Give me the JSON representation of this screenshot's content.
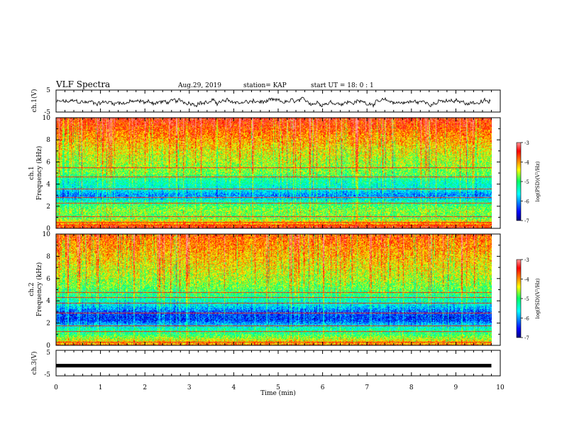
{
  "header": {
    "title": "VLF Spectra",
    "date": "Aug.29, 2019",
    "station": "station= KAP",
    "start_ut": "start  UT =   18: 0  : 1"
  },
  "chart_data": [
    {
      "type": "line",
      "panel": "ch1-waveform",
      "ylabel": "ch.1(V)",
      "ylim": [
        -5,
        5
      ],
      "yticks": [
        "5",
        "-5"
      ],
      "xlim": [
        0,
        10
      ],
      "series": [
        {
          "values_note": "noisy waveform fluctuating around -0.5 V with amplitude about ±1.5 V over 0–9.8 min"
        }
      ]
    },
    {
      "type": "heatmap",
      "panel": "ch1-spectrogram",
      "ylabel": "ch.1\nFrequency (kHz)",
      "ylim": [
        0,
        10
      ],
      "yticks": [
        "0",
        "2",
        "4",
        "6",
        "8",
        "10"
      ],
      "xlim": [
        0,
        9.8
      ],
      "colorbar": {
        "label": "log(PSD)(V²/Hz)",
        "range": [
          -7,
          -3
        ],
        "ticks": [
          "-3",
          "-4",
          "-5",
          "-6",
          "-7"
        ]
      },
      "profile_kHz": [
        {
          "f": 0.3,
          "v": -3.8
        },
        {
          "f": 1.0,
          "v": -4.9
        },
        {
          "f": 1.6,
          "v": -4.7
        },
        {
          "f": 2.3,
          "v": -5.1
        },
        {
          "f": 3.0,
          "v": -6.1
        },
        {
          "f": 3.6,
          "v": -5.5
        },
        {
          "f": 4.3,
          "v": -5.3
        },
        {
          "f": 5.0,
          "v": -4.8
        },
        {
          "f": 6.0,
          "v": -4.6
        },
        {
          "f": 7.0,
          "v": -4.4
        },
        {
          "f": 8.0,
          "v": -4.1
        },
        {
          "f": 9.0,
          "v": -3.8
        },
        {
          "f": 10.0,
          "v": -3.5
        }
      ],
      "lines_kHz": [
        0.3,
        0.6,
        1.1,
        2.3,
        2.8,
        3.6,
        4.7,
        5.5
      ]
    },
    {
      "type": "heatmap",
      "panel": "ch2-spectrogram",
      "ylabel": "ch.2\nFrequency (kHz)",
      "ylim": [
        0,
        10
      ],
      "yticks": [
        "0",
        "2",
        "4",
        "6",
        "8",
        "10"
      ],
      "xlim": [
        0,
        9.8
      ],
      "colorbar": {
        "label": "log(PSD)(V²/Hz)",
        "range": [
          -7,
          -3
        ],
        "ticks": [
          "-3",
          "-4",
          "-5",
          "-6",
          "-7"
        ]
      },
      "profile_kHz": [
        {
          "f": 0.3,
          "v": -4.2
        },
        {
          "f": 1.0,
          "v": -5.0
        },
        {
          "f": 1.6,
          "v": -5.4
        },
        {
          "f": 2.3,
          "v": -6.4
        },
        {
          "f": 3.0,
          "v": -6.3
        },
        {
          "f": 3.6,
          "v": -5.7
        },
        {
          "f": 4.3,
          "v": -5.2
        },
        {
          "f": 5.0,
          "v": -4.9
        },
        {
          "f": 6.0,
          "v": -4.6
        },
        {
          "f": 7.0,
          "v": -4.4
        },
        {
          "f": 8.0,
          "v": -4.2
        },
        {
          "f": 9.0,
          "v": -4.0
        },
        {
          "f": 10.0,
          "v": -3.8
        }
      ],
      "lines_kHz": [
        0.3,
        1.3,
        1.8,
        2.9,
        3.8,
        4.3,
        4.8
      ]
    },
    {
      "type": "line",
      "panel": "ch3-waveform",
      "ylabel": "ch.3(V)",
      "ylim": [
        -5,
        5
      ],
      "yticks": [
        "5",
        "-5"
      ],
      "xlim": [
        0,
        10
      ],
      "series": [
        {
          "values": [
            -1,
            -1
          ],
          "x": [
            0,
            9.8
          ]
        }
      ]
    }
  ],
  "xaxis": {
    "label": "Time (min)",
    "ticks": [
      "0",
      "1",
      "2",
      "3",
      "4",
      "5",
      "6",
      "7",
      "8",
      "9",
      "10"
    ]
  }
}
